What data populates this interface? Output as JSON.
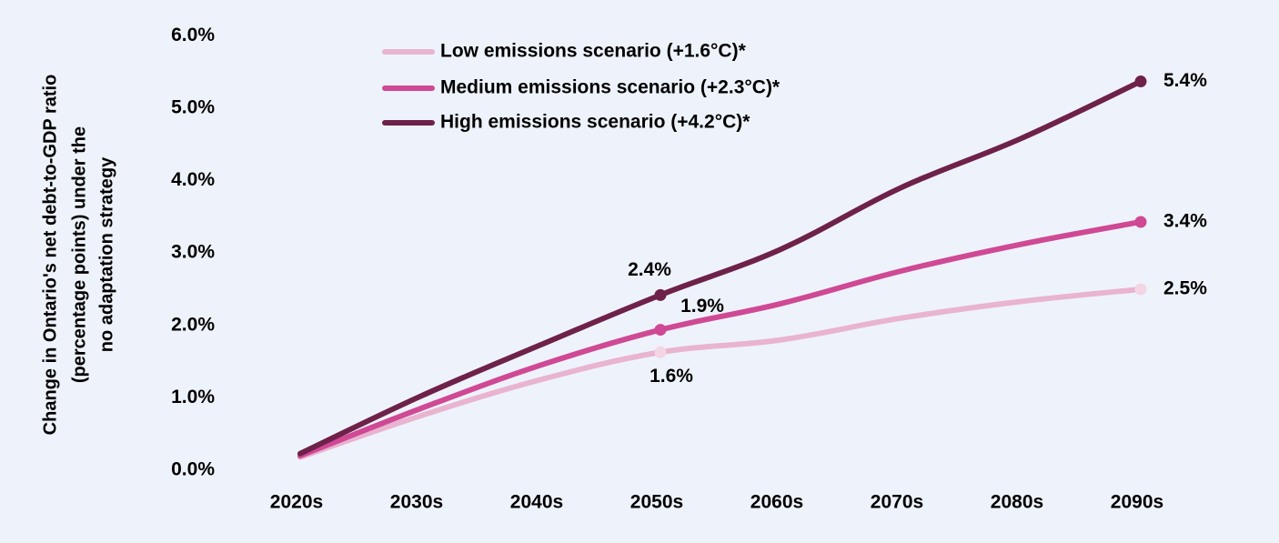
{
  "chart_data": {
    "type": "line",
    "ylabel_lines": [
      "Change in Ontario's net debt-to-GDP ratio",
      "(percentage points) under the",
      "no adaptation strategy"
    ],
    "categories": [
      "2020s",
      "2030s",
      "2040s",
      "2050s",
      "2060s",
      "2070s",
      "2080s",
      "2090s"
    ],
    "ylim": [
      0,
      6
    ],
    "yticks": [
      0,
      1,
      2,
      3,
      4,
      5,
      6
    ],
    "ytick_labels": [
      "0.0%",
      "1.0%",
      "2.0%",
      "3.0%",
      "4.0%",
      "5.0%",
      "6.0%"
    ],
    "grid": false,
    "legend_position": "top-center",
    "series": [
      {
        "name": "Low emissions scenario (+1.6°C)*",
        "color": "#e9b4cf",
        "marker_color": "#f3d5e4",
        "values": [
          0.18,
          0.75,
          1.25,
          1.63,
          1.8,
          2.1,
          2.33,
          2.5
        ],
        "labels": [
          {
            "index": 3,
            "text": "1.6%",
            "position": "below"
          },
          {
            "index": 7,
            "text": "2.5%",
            "position": "right"
          }
        ]
      },
      {
        "name": "Medium emissions scenario (+2.3°C)*",
        "color": "#cf4995",
        "marker_color": "#cf4995",
        "values": [
          0.2,
          0.85,
          1.45,
          1.94,
          2.3,
          2.75,
          3.12,
          3.43
        ],
        "labels": [
          {
            "index": 3,
            "text": "1.9%",
            "position": "upper-right"
          },
          {
            "index": 7,
            "text": "3.4%",
            "position": "right"
          }
        ]
      },
      {
        "name": "High emissions scenario (+4.2°C)*",
        "color": "#6e2149",
        "marker_color": "#6e2149",
        "values": [
          0.23,
          1.02,
          1.73,
          2.42,
          3.05,
          3.9,
          4.58,
          5.37
        ],
        "labels": [
          {
            "index": 3,
            "text": "2.4%",
            "position": "above"
          },
          {
            "index": 7,
            "text": "5.4%",
            "position": "right"
          }
        ]
      }
    ],
    "markers_at": [
      3,
      7
    ]
  }
}
